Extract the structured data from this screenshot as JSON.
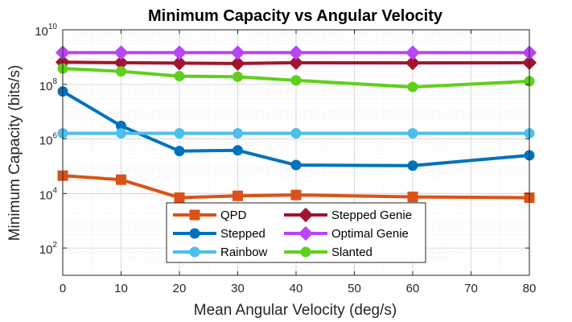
{
  "chart_data": {
    "type": "line",
    "title": "Minimum Capacity vs Angular Velocity",
    "xlabel": "Mean Angular Velocity (deg/s)",
    "ylabel": "Minimum Capacity (bits/s)",
    "xlim": [
      0,
      80
    ],
    "ylim_exp": [
      1,
      10
    ],
    "yscale": "log",
    "grid": true,
    "minor_grid": true,
    "legend_position": "bottom-center",
    "x_ticks": [
      0,
      10,
      20,
      30,
      40,
      50,
      60,
      70,
      80
    ],
    "y_ticks": [
      {
        "base": "10",
        "exp": "2",
        "value_exp": 2
      },
      {
        "base": "10",
        "exp": "4",
        "value_exp": 4
      },
      {
        "base": "10",
        "exp": "6",
        "value_exp": 6
      },
      {
        "base": "10",
        "exp": "8",
        "value_exp": 8
      },
      {
        "base": "10",
        "exp": "10",
        "value_exp": 10
      }
    ],
    "x": [
      0,
      10,
      20,
      30,
      40,
      60,
      80
    ],
    "series": [
      {
        "name": "QPD",
        "color": "#d95319",
        "marker": "square",
        "values": [
          45000,
          32000,
          7000,
          8200,
          8800,
          7500,
          7000
        ]
      },
      {
        "name": "Stepped",
        "color": "#0072bd",
        "marker": "circle",
        "values": [
          55000000,
          3000000,
          360000,
          380000,
          110000,
          105000,
          250000
        ]
      },
      {
        "name": "Rainbow",
        "color": "#4dbeee",
        "marker": "circle",
        "values": [
          1600000,
          1600000,
          1600000,
          1600000,
          1600000,
          1600000,
          1600000
        ]
      },
      {
        "name": "Stepped Genie",
        "color": "#a2142f",
        "marker": "diamond",
        "values": [
          650000000,
          620000000,
          600000000,
          580000000,
          620000000,
          610000000,
          620000000
        ]
      },
      {
        "name": "Optimal Genie",
        "color": "#b946f5",
        "marker": "diamond",
        "values": [
          1450000000,
          1450000000,
          1450000000,
          1450000000,
          1450000000,
          1450000000,
          1450000000
        ]
      },
      {
        "name": "Slanted",
        "color": "#5ed01b",
        "marker": "circle",
        "values": [
          380000000,
          300000000,
          200000000,
          190000000,
          140000000,
          80000000,
          130000000
        ]
      }
    ]
  }
}
